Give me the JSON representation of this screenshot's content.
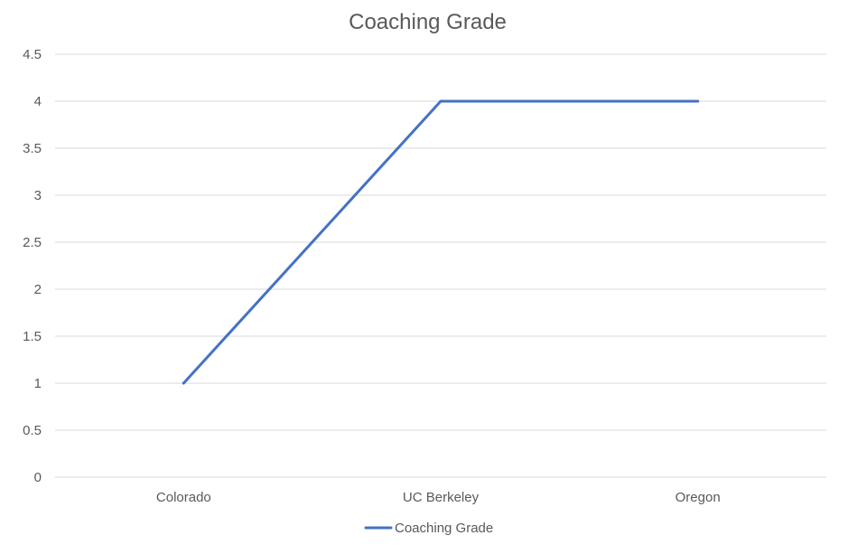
{
  "chart_data": {
    "type": "line",
    "title": "Coaching Grade",
    "xlabel": "",
    "ylabel": "",
    "categories": [
      "Colorado",
      "UC Berkeley",
      "Oregon"
    ],
    "series": [
      {
        "name": "Coaching Grade",
        "values": [
          1,
          4,
          4
        ],
        "color": "#4472C4"
      }
    ],
    "ylim": [
      0,
      4.5
    ],
    "yticks": [
      0,
      0.5,
      1,
      1.5,
      2,
      2.5,
      3,
      3.5,
      4,
      4.5
    ],
    "grid": true,
    "legend_position": "bottom"
  }
}
